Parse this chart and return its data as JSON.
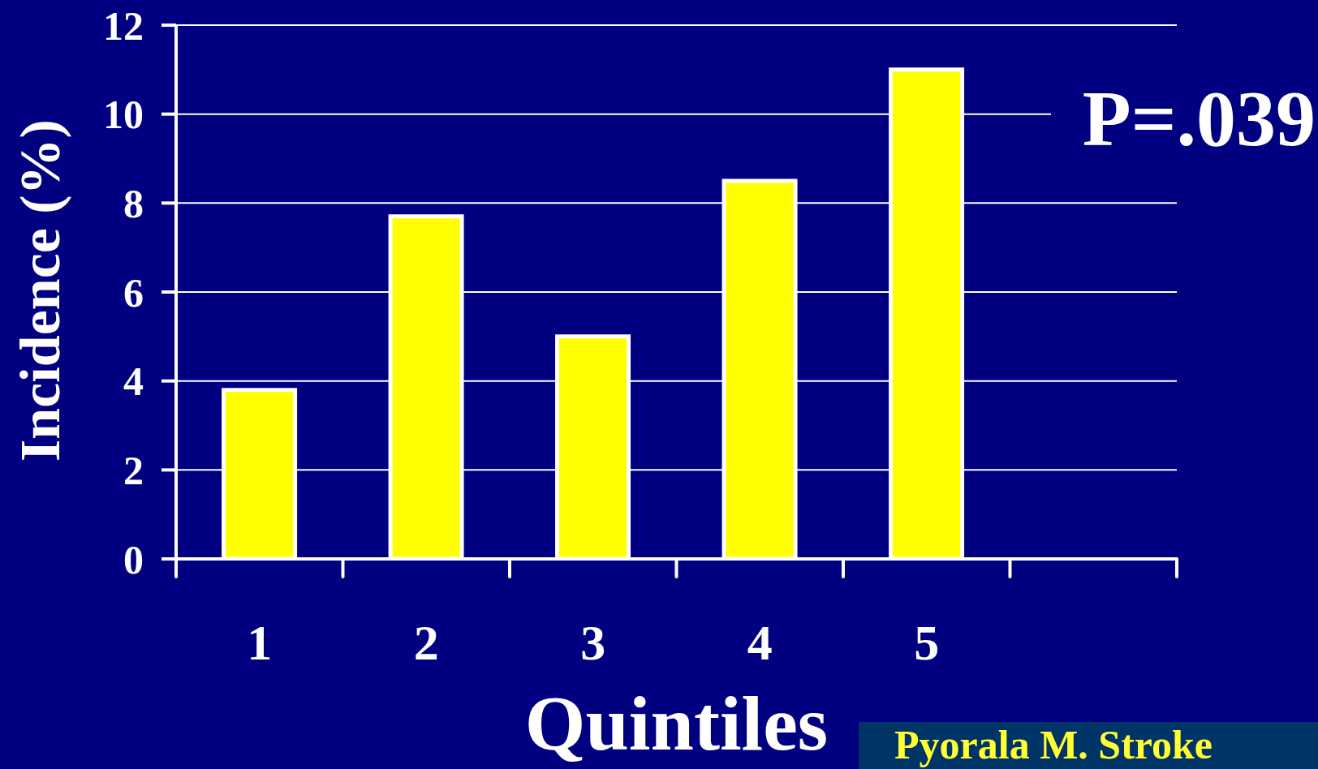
{
  "chart_data": {
    "type": "bar",
    "categories": [
      "1",
      "2",
      "3",
      "4",
      "5",
      null
    ],
    "values": [
      3.8,
      7.7,
      5.0,
      8.5,
      11.0,
      null
    ],
    "color": "#ffff00",
    "xlabel": "Quintiles",
    "ylabel": "Incidence (%)",
    "ylim": [
      0,
      12
    ],
    "yticks": [
      0,
      2,
      4,
      6,
      8,
      10,
      12
    ],
    "grid": "y",
    "annotations": [
      "P=.039",
      "Pyorala M. Stroke"
    ]
  }
}
